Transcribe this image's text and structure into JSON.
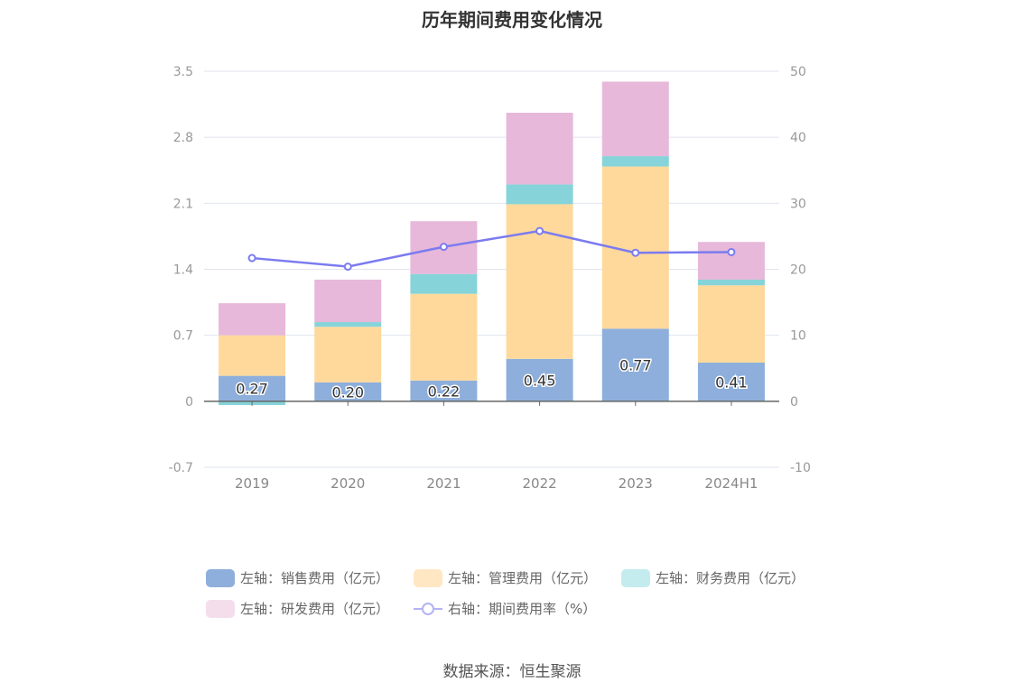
{
  "chart_data": {
    "type": "bar",
    "title": "历年期间费用变化情况",
    "categories": [
      "2019",
      "2020",
      "2021",
      "2022",
      "2023",
      "2024H1"
    ],
    "left_axis": {
      "min": -0.7,
      "max": 3.5,
      "ticks": [
        "3.5",
        "2.8",
        "2.1",
        "1.4",
        "0.7",
        "0",
        "-0.7"
      ]
    },
    "right_axis": {
      "min": -10,
      "max": 50,
      "ticks": [
        "50",
        "40",
        "30",
        "20",
        "10",
        "0",
        "-10"
      ]
    },
    "stacked": true,
    "series": [
      {
        "name": "左轴：销售费用（亿元）",
        "axis": "left",
        "type": "bar",
        "color": "#8eafdc",
        "values": [
          0.27,
          0.2,
          0.22,
          0.45,
          0.77,
          0.41
        ],
        "labels": [
          "0.27",
          "0.20",
          "0.22",
          "0.45",
          "0.77",
          "0.41"
        ]
      },
      {
        "name": "左轴：管理费用（亿元）",
        "axis": "left",
        "type": "bar",
        "color": "#fed99b",
        "values": [
          0.43,
          0.59,
          0.92,
          1.64,
          1.72,
          0.82
        ]
      },
      {
        "name": "左轴：财务费用（亿元）",
        "axis": "left",
        "type": "bar",
        "color": "#86d4d9",
        "values": [
          -0.04,
          0.05,
          0.21,
          0.21,
          0.11,
          0.06
        ]
      },
      {
        "name": "左轴：研发费用（亿元）",
        "axis": "left",
        "type": "bar",
        "color": "#e7b8d9",
        "values": [
          0.34,
          0.45,
          0.56,
          0.76,
          0.79,
          0.4
        ]
      },
      {
        "name": "右轴：期间费用率（%）",
        "axis": "right",
        "type": "line",
        "color": "#7b7bf0",
        "values": [
          21.7,
          20.4,
          23.4,
          25.8,
          22.5,
          22.6
        ]
      }
    ],
    "grid": true,
    "legend_position": "bottom"
  },
  "legend": [
    {
      "label": "左轴：销售费用（亿元）",
      "color": "#8eafdc",
      "kind": "bar"
    },
    {
      "label": "左轴：管理费用（亿元）",
      "color": "#ffe7c4",
      "kind": "bar"
    },
    {
      "label": "左轴：财务费用（亿元）",
      "color": "#c4ebee",
      "kind": "bar"
    },
    {
      "label": "左轴：研发费用（亿元）",
      "color": "#f5deec",
      "kind": "bar"
    },
    {
      "label": "右轴：期间费用率（%）",
      "color": "#b3b3f5",
      "kind": "line"
    }
  ],
  "source": "数据来源：恒生聚源"
}
